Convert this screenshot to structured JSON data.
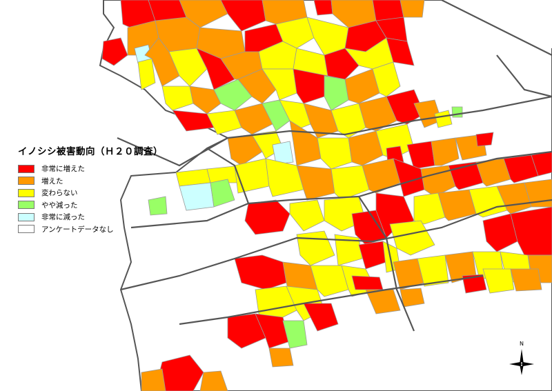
{
  "legend": {
    "title": "イノシシ被害動向（Ｈ２０調査）",
    "items": [
      {
        "label": "非常に増えた",
        "color": "#ff0000"
      },
      {
        "label": "増えた",
        "color": "#ff9900"
      },
      {
        "label": "変わらない",
        "color": "#ffff00"
      },
      {
        "label": "やや減った",
        "color": "#99ff66"
      },
      {
        "label": "非常に減った",
        "color": "#ccffff"
      },
      {
        "label": "アンケートデータなし",
        "color": "#ffffff"
      }
    ]
  },
  "compass": {
    "label": "N"
  },
  "colors": {
    "region_border": "#555555",
    "sub_border": "#9a9a9a"
  }
}
